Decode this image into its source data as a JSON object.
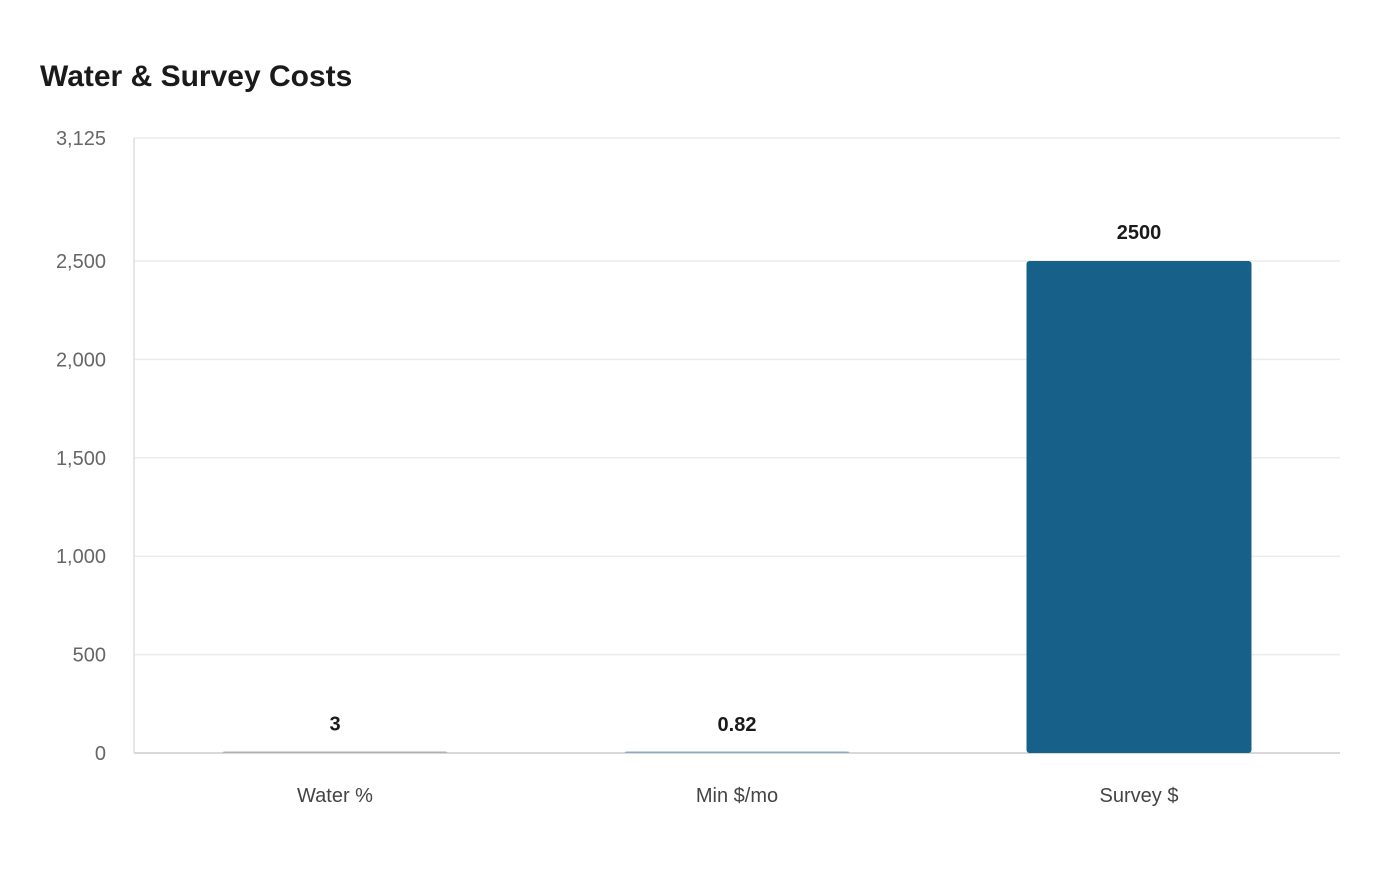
{
  "chart_data": {
    "type": "bar",
    "title": "Water & Survey Costs",
    "categories": [
      "Water %",
      "Min $/mo",
      "Survey $"
    ],
    "values": [
      3,
      0.82,
      2500
    ],
    "data_labels": [
      "3",
      "0.82",
      "2500"
    ],
    "ylim": [
      0,
      3125
    ],
    "yticks": [
      0,
      500,
      1000,
      1500,
      2000,
      2500,
      3125
    ],
    "ytick_labels": [
      "0",
      "500",
      "1,000",
      "1,500",
      "2,000",
      "2,500",
      "3,125"
    ],
    "colors": [
      "#b0b0b0",
      "#8fa9c0",
      "#17608a"
    ],
    "grid": true,
    "legend": "none"
  }
}
